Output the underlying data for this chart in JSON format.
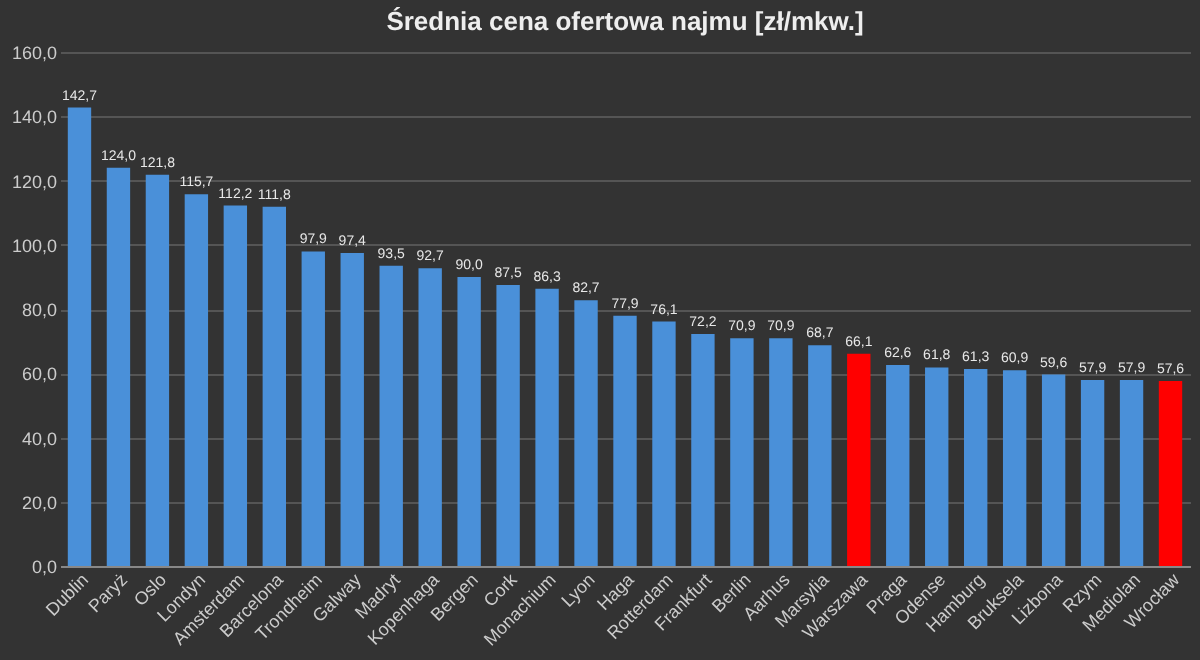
{
  "chart_data": {
    "type": "bar",
    "title": "Średnia cena ofertowa najmu [zł/mkw.]",
    "categories": [
      "Dublin",
      "Paryż",
      "Oslo",
      "Londyn",
      "Amsterdam",
      "Barcelona",
      "Trondheim",
      "Galway",
      "Madryt",
      "Kopenhaga",
      "Bergen",
      "Cork",
      "Monachium",
      "Lyon",
      "Haga",
      "Rotterdam",
      "Frankfurt",
      "Berlin",
      "Aarhus",
      "Marsylia",
      "Warszawa",
      "Praga",
      "Odense",
      "Hamburg",
      "Bruksela",
      "Lizbona",
      "Rzym",
      "Mediolan",
      "Wrocław"
    ],
    "values": [
      142.7,
      124.0,
      121.8,
      115.7,
      112.2,
      111.8,
      97.9,
      97.4,
      93.5,
      92.7,
      90.0,
      87.5,
      86.3,
      82.7,
      77.9,
      76.1,
      72.2,
      70.9,
      70.9,
      68.7,
      66.1,
      62.6,
      61.8,
      61.3,
      60.9,
      59.6,
      57.9,
      57.9,
      57.6
    ],
    "value_labels": [
      "142,7",
      "124,0",
      "121,8",
      "115,7",
      "112,2",
      "111,8",
      "97,9",
      "97,4",
      "93,5",
      "92,7",
      "90,0",
      "87,5",
      "86,3",
      "82,7",
      "77,9",
      "76,1",
      "72,2",
      "70,9",
      "70,9",
      "68,7",
      "66,1",
      "62,6",
      "61,8",
      "61,3",
      "60,9",
      "59,6",
      "57,9",
      "57,9",
      "57,6"
    ],
    "colors": [
      "#4a90d9",
      "#4a90d9",
      "#4a90d9",
      "#4a90d9",
      "#4a90d9",
      "#4a90d9",
      "#4a90d9",
      "#4a90d9",
      "#4a90d9",
      "#4a90d9",
      "#4a90d9",
      "#4a90d9",
      "#4a90d9",
      "#4a90d9",
      "#4a90d9",
      "#4a90d9",
      "#4a90d9",
      "#4a90d9",
      "#4a90d9",
      "#4a90d9",
      "#ff0000",
      "#4a90d9",
      "#4a90d9",
      "#4a90d9",
      "#4a90d9",
      "#4a90d9",
      "#4a90d9",
      "#4a90d9",
      "#ff0000"
    ],
    "ylim": [
      0,
      160
    ],
    "yticks": [
      {
        "value": 0,
        "label": "0,0"
      },
      {
        "value": 20,
        "label": "20,0"
      },
      {
        "value": 40,
        "label": "40,0"
      },
      {
        "value": 60,
        "label": "60,0"
      },
      {
        "value": 80,
        "label": "80,0"
      },
      {
        "value": 100,
        "label": "100,0"
      },
      {
        "value": 120,
        "label": "120,0"
      },
      {
        "value": 140,
        "label": "140,0"
      },
      {
        "value": 160,
        "label": "160,0"
      }
    ],
    "grid": "y",
    "legend": false
  }
}
